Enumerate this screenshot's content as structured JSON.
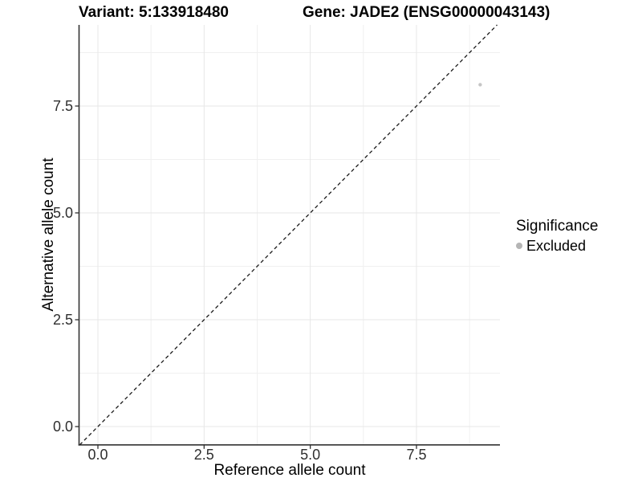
{
  "header": {
    "variant_title": "Variant: 5:133918480",
    "gene_title": "Gene: JADE2 (ENSG00000043143)"
  },
  "chart_data": {
    "type": "scatter",
    "title": "Variant: 5:133918480 / Gene: JADE2 (ENSG00000043143)",
    "xlabel": "Reference allele count",
    "ylabel": "Alternative allele count",
    "xlim": [
      -0.42,
      9.47
    ],
    "ylim": [
      -0.41,
      9.4
    ],
    "grid": true,
    "legend_position": "right",
    "x_ticks": {
      "values": [
        0,
        2.5,
        5,
        7.5
      ],
      "labels": [
        "0.0",
        "2.5",
        "5.0",
        "7.5"
      ]
    },
    "y_ticks": {
      "values": [
        0,
        2.5,
        5,
        7.5
      ],
      "labels": [
        "0.0",
        "2.5",
        "5.0",
        "7.5"
      ]
    },
    "minor_ticks": [
      1.25,
      3.75,
      6.25,
      8.75
    ],
    "points": [
      {
        "x": 9,
        "y": 8,
        "series": "Excluded"
      }
    ],
    "reference_line": {
      "type": "identity",
      "slope": 1,
      "intercept": 0,
      "style": "dashed"
    },
    "legend": {
      "title": "Significance",
      "entries": [
        {
          "label": "Excluded",
          "color": "#b5b5b5"
        }
      ]
    },
    "colors": {
      "point": "#c5c5c5",
      "grid_major": "#e7e7e7",
      "grid_minor": "#f0f0f0",
      "axis": "#333333",
      "tick": "#333333",
      "reference_line": "#1a1a1a",
      "background": "#ffffff"
    }
  }
}
